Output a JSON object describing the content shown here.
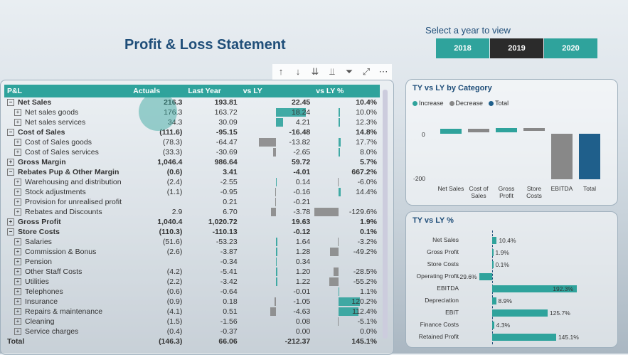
{
  "title": "Profit & Loss Statement",
  "year_selector": {
    "label": "Select a year to view",
    "years": [
      "2018",
      "2019",
      "2020"
    ],
    "selected": "2019"
  },
  "columns": [
    "P&L",
    "Actuals",
    "Last Year",
    "vs LY",
    "vs LY %"
  ],
  "rows": [
    {
      "label": "Net Sales",
      "level": 0,
      "bold": true,
      "expand": "⊟",
      "actuals": "216.3",
      "ly": "193.81",
      "vs": "22.45",
      "pct": "10.4%",
      "vsbar": 0,
      "pctbar": 0
    },
    {
      "label": "Net sales goods",
      "level": 1,
      "bold": false,
      "expand": "⊞",
      "actuals": "176.3",
      "ly": "163.72",
      "vs": "18.24",
      "pct": "10.0%",
      "vsbar": 60,
      "pctbar": 2
    },
    {
      "label": "Net sales services",
      "level": 1,
      "bold": false,
      "expand": "⊞",
      "actuals": "34.3",
      "ly": "30.09",
      "vs": "4.21",
      "pct": "12.3%",
      "vsbar": 14,
      "pctbar": 2
    },
    {
      "label": "Cost of Sales",
      "level": 0,
      "bold": true,
      "expand": "⊟",
      "actuals": "(111.6)",
      "ly": "-95.15",
      "vs": "-16.48",
      "pct": "14.8%",
      "vsbar": 0,
      "pctbar": 0
    },
    {
      "label": "Cost of Sales goods",
      "level": 1,
      "bold": false,
      "expand": "⊞",
      "actuals": "(78.3)",
      "ly": "-64.47",
      "vs": "-13.82",
      "pct": "17.7%",
      "vsbar": -34,
      "pctbar": 3
    },
    {
      "label": "Cost of Sales services",
      "level": 1,
      "bold": false,
      "expand": "⊞",
      "actuals": "(33.3)",
      "ly": "-30.69",
      "vs": "-2.65",
      "pct": "8.0%",
      "vsbar": -6,
      "pctbar": 2
    },
    {
      "label": "Gross Margin",
      "level": 0,
      "bold": true,
      "expand": "⊞",
      "actuals": "1,046.4",
      "ly": "986.64",
      "vs": "59.72",
      "pct": "5.7%",
      "vsbar": 0,
      "pctbar": 0
    },
    {
      "label": "Rebates Pup & Other Margin",
      "level": 0,
      "bold": true,
      "expand": "⊟",
      "actuals": "(0.6)",
      "ly": "3.41",
      "vs": "-4.01",
      "pct": "667.2%",
      "vsbar": 0,
      "pctbar": 0
    },
    {
      "label": "Warehousing and distribution",
      "level": 1,
      "bold": false,
      "expand": "⊞",
      "actuals": "(2.4)",
      "ly": "-2.55",
      "vs": "0.14",
      "pct": "-6.0%",
      "vsbar": 1,
      "pctbar": -1
    },
    {
      "label": "Stock adjustments",
      "level": 1,
      "bold": false,
      "expand": "⊞",
      "actuals": "(1.1)",
      "ly": "-0.95",
      "vs": "-0.16",
      "pct": "14.4%",
      "vsbar": -1,
      "pctbar": 3
    },
    {
      "label": "Provision for unrealised profit",
      "level": 1,
      "bold": false,
      "expand": "⊞",
      "actuals": "",
      "ly": "0.21",
      "vs": "-0.21",
      "pct": "",
      "vsbar": -1,
      "pctbar": 0
    },
    {
      "label": "Rebates and Discounts",
      "level": 1,
      "bold": false,
      "expand": "⊞",
      "actuals": "2.9",
      "ly": "6.70",
      "vs": "-3.78",
      "pct": "-129.6%",
      "vsbar": -9,
      "pctbar": -34
    },
    {
      "label": "Gross Profit",
      "level": 0,
      "bold": true,
      "expand": "⊞",
      "actuals": "1,040.4",
      "ly": "1,020.72",
      "vs": "19.63",
      "pct": "1.9%",
      "vsbar": 0,
      "pctbar": 0
    },
    {
      "label": "Store Costs",
      "level": 0,
      "bold": true,
      "expand": "⊟",
      "actuals": "(110.3)",
      "ly": "-110.13",
      "vs": "-0.12",
      "pct": "0.1%",
      "vsbar": 0,
      "pctbar": 0
    },
    {
      "label": "Salaries",
      "level": 1,
      "bold": false,
      "expand": "⊞",
      "actuals": "(51.6)",
      "ly": "-53.23",
      "vs": "1.64",
      "pct": "-3.2%",
      "vsbar": 3,
      "pctbar": -1
    },
    {
      "label": "Commission & Bonus",
      "level": 1,
      "bold": false,
      "expand": "⊞",
      "actuals": "(2.6)",
      "ly": "-3.87",
      "vs": "1.28",
      "pct": "-49.2%",
      "vsbar": 3,
      "pctbar": -12
    },
    {
      "label": "Pension",
      "level": 1,
      "bold": false,
      "expand": "⊞",
      "actuals": "",
      "ly": "-0.34",
      "vs": "0.34",
      "pct": "",
      "vsbar": 1,
      "pctbar": 0
    },
    {
      "label": "Other Staff Costs",
      "level": 1,
      "bold": false,
      "expand": "⊞",
      "actuals": "(4.2)",
      "ly": "-5.41",
      "vs": "1.20",
      "pct": "-28.5%",
      "vsbar": 3,
      "pctbar": -7
    },
    {
      "label": "Utilities",
      "level": 1,
      "bold": false,
      "expand": "⊞",
      "actuals": "(2.2)",
      "ly": "-3.42",
      "vs": "1.22",
      "pct": "-55.2%",
      "vsbar": 3,
      "pctbar": -13
    },
    {
      "label": "Telephones",
      "level": 1,
      "bold": false,
      "expand": "⊞",
      "actuals": "(0.6)",
      "ly": "-0.64",
      "vs": "-0.01",
      "pct": "1.1%",
      "vsbar": 0,
      "pctbar": 1
    },
    {
      "label": "Insurance",
      "level": 1,
      "bold": false,
      "expand": "⊞",
      "actuals": "(0.9)",
      "ly": "0.18",
      "vs": "-1.05",
      "pct": "120.2%",
      "vsbar": -3,
      "pctbar": 30
    },
    {
      "label": "Repairs & maintenance",
      "level": 1,
      "bold": false,
      "expand": "⊞",
      "actuals": "(4.1)",
      "ly": "0.51",
      "vs": "-4.63",
      "pct": "112.4%",
      "vsbar": -11,
      "pctbar": 28
    },
    {
      "label": "Cleaning",
      "level": 1,
      "bold": false,
      "expand": "⊞",
      "actuals": "(1.5)",
      "ly": "-1.56",
      "vs": "0.08",
      "pct": "-5.1%",
      "vsbar": 0,
      "pctbar": -1
    },
    {
      "label": "Service charges",
      "level": 1,
      "bold": false,
      "expand": "⊞",
      "actuals": "(0.4)",
      "ly": "-0.37",
      "vs": "0.00",
      "pct": "0.0%",
      "vsbar": 0,
      "pctbar": 0
    },
    {
      "label": "Total",
      "level": 0,
      "bold": true,
      "expand": "",
      "actuals": "(146.3)",
      "ly": "66.06",
      "vs": "-212.37",
      "pct": "145.1%",
      "vsbar": 0,
      "pctbar": 0
    }
  ],
  "waterfall": {
    "title": "TY vs LY by Category",
    "legend": [
      "Increase",
      "Decrease",
      "Total"
    ],
    "colors": {
      "increase": "#2fa39c",
      "decrease": "#888888",
      "total": "#1f5f8b"
    },
    "y_ticks": [
      "0",
      "-200"
    ],
    "categories": [
      "Net Sales",
      "Cost of Sales",
      "Gross Profit",
      "Store Costs",
      "EBITDA",
      "Total"
    ],
    "values": [
      22.45,
      -16.48,
      19.63,
      -0.12,
      -212.37,
      -212.37
    ]
  },
  "pct_chart": {
    "title": "TY vs LY %",
    "categories": [
      "Net Sales",
      "Gross Profit",
      "Store Costs",
      "Operating Profit",
      "EBITDA",
      "Depreciation",
      "EBIT",
      "Finance Costs",
      "Retained Profit"
    ],
    "values": [
      10.4,
      1.9,
      0.1,
      -29.6,
      192.3,
      8.9,
      125.7,
      4.3,
      145.1
    ],
    "labels": [
      "10.4%",
      "1.9%",
      "0.1%",
      "-29.6%",
      "192.3%",
      "8.9%",
      "125.7%",
      "4.3%",
      "145.1%"
    ]
  }
}
